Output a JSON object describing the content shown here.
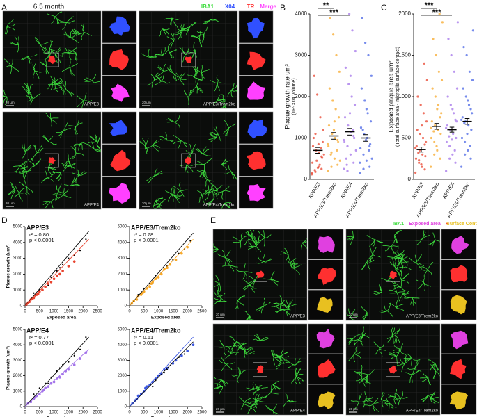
{
  "panel_letters": [
    "A",
    "B",
    "C",
    "D",
    "E"
  ],
  "panel_a": {
    "title": "6.5 month",
    "channels": [
      "IBA1",
      "X04",
      "TR",
      "Merge"
    ],
    "channel_colors": [
      "#3ddc3d",
      "#3050ff",
      "#ff3030",
      "#ff40ff"
    ],
    "images": [
      "APP/E3",
      "APP/E3/Trem2ko",
      "APP/E4",
      "APP/E4/Trem2ko"
    ],
    "scale": "20 µm"
  },
  "panel_e": {
    "channels": [
      "IBA1",
      "Exposed area",
      "TR",
      "Surface Contact"
    ],
    "channel_colors": [
      "#3ddc3d",
      "#e040e0",
      "#ff3030",
      "#e8c020"
    ],
    "images": [
      "APP/E3",
      "APP/E3/Trem2ko",
      "APP/E4",
      "APP/E4/Trem2ko"
    ],
    "scale": "20 µm"
  },
  "chart_data": [
    {
      "type": "strip",
      "ylabel": "Plaque growth rate um³",
      "ysublabel": "(TR-X04 volume)",
      "categories": [
        "APP/E3",
        "APP/E3/Trem2ko",
        "APP/E4",
        "APP/E4/Trem2ko"
      ],
      "groups": [
        {
          "color": "#e8432e",
          "values": [
            120,
            250,
            300,
            180,
            400,
            520,
            650,
            700,
            800,
            900,
            350,
            450,
            1000,
            1200,
            1500,
            2050,
            2500,
            600,
            750,
            280,
            220,
            150,
            550,
            850,
            1100
          ]
        },
        {
          "color": "#f7a829",
          "values": [
            200,
            350,
            500,
            650,
            800,
            900,
            1000,
            1100,
            1300,
            1500,
            1700,
            1900,
            2200,
            2600,
            3000,
            3500,
            3900,
            450,
            700,
            1200,
            600,
            850,
            950,
            1400,
            300
          ]
        },
        {
          "color": "#a373ea",
          "values": [
            250,
            400,
            600,
            800,
            900,
            1000,
            1150,
            1300,
            1500,
            1800,
            2000,
            2300,
            2700,
            3100,
            3600,
            4000,
            500,
            700,
            1200,
            1600,
            350,
            950,
            1050,
            2500,
            200
          ]
        },
        {
          "color": "#4a66e6",
          "values": [
            150,
            300,
            450,
            600,
            750,
            850,
            1000,
            1100,
            1250,
            1400,
            1600,
            1900,
            2200,
            2500,
            3000,
            3300,
            3900,
            500,
            700,
            950,
            1200,
            400,
            800,
            1700,
            250
          ]
        }
      ],
      "means": [
        700,
        1050,
        1150,
        1000
      ],
      "sem": [
        70,
        80,
        80,
        80
      ],
      "significance": [
        {
          "label": "**",
          "from": 0,
          "to": 1
        },
        {
          "label": "***",
          "from": 0,
          "to": 2
        }
      ],
      "ylim": [
        0,
        4000
      ],
      "yticks": [
        0,
        1000,
        2000,
        3000,
        4000
      ]
    },
    {
      "type": "strip",
      "ylabel": "Exposed plaque area um²",
      "ysublabel": "(Total surface area - microglia surface contact)",
      "categories": [
        "APP/E3",
        "APP/E3/Trem2ko",
        "APP/E4",
        "APP/E4/Trem2ko"
      ],
      "groups": [
        {
          "color": "#e8432e",
          "values": [
            80,
            120,
            150,
            200,
            250,
            280,
            300,
            350,
            400,
            450,
            500,
            550,
            600,
            700,
            800,
            900,
            1000,
            1200,
            1400,
            180,
            320,
            380,
            420,
            650,
            230
          ]
        },
        {
          "color": "#f7a829",
          "values": [
            150,
            250,
            350,
            450,
            500,
            550,
            600,
            650,
            700,
            800,
            900,
            1000,
            1100,
            1200,
            1300,
            1500,
            1700,
            1900,
            2000,
            400,
            580,
            620,
            750,
            850,
            300
          ]
        },
        {
          "color": "#a373ea",
          "values": [
            100,
            200,
            300,
            400,
            450,
            500,
            550,
            600,
            650,
            700,
            800,
            900,
            1000,
            1100,
            1300,
            1500,
            1700,
            1900,
            350,
            480,
            520,
            620,
            720,
            850,
            250
          ]
        },
        {
          "color": "#4a66e6",
          "values": [
            150,
            250,
            350,
            450,
            500,
            600,
            650,
            700,
            750,
            800,
            900,
            1000,
            1100,
            1200,
            1300,
            1500,
            1600,
            1800,
            400,
            550,
            680,
            720,
            850,
            950,
            300
          ]
        }
      ],
      "means": [
        360,
        640,
        600,
        700
      ],
      "sem": [
        30,
        35,
        30,
        35
      ],
      "significance": [
        {
          "label": "***",
          "from": 0,
          "to": 1
        },
        {
          "label": "***",
          "from": 0,
          "to": 2
        }
      ],
      "ylim": [
        0,
        2000
      ],
      "yticks": [
        0,
        500,
        1000,
        1500,
        2000
      ]
    },
    {
      "type": "scatter",
      "title": "APP/E3",
      "annotations": [
        "r² = 0.80",
        "p < 0.0001"
      ],
      "xlabel": "Exposed area",
      "ylabel": "Plaque growth (um³)",
      "points": {
        "color": "#e8432e",
        "x": [
          50,
          100,
          150,
          200,
          250,
          300,
          350,
          400,
          450,
          500,
          600,
          700,
          800,
          900,
          1000,
          1100,
          1200,
          1300,
          1500,
          1700
        ],
        "y": [
          100,
          200,
          250,
          400,
          450,
          500,
          650,
          700,
          750,
          900,
          1000,
          1200,
          1400,
          1500,
          1700,
          1900,
          2000,
          2200,
          2500,
          2800
        ]
      },
      "reference_points": {
        "color": "#000000",
        "x": [
          300,
          500,
          700,
          900,
          1100,
          1300,
          1500,
          1700,
          1900,
          2100,
          800,
          1200
        ],
        "y": [
          800,
          1000,
          1500,
          1800,
          2200,
          2600,
          3000,
          3200,
          3500,
          4200,
          1300,
          2400
        ]
      },
      "fit": {
        "color": "#e8432e",
        "x": [
          0,
          2200
        ],
        "y": [
          0,
          4200
        ]
      },
      "reference_fit": {
        "color": "#000000",
        "x": [
          0,
          2200
        ],
        "y": [
          0,
          4700
        ]
      },
      "xlim": [
        0,
        2500
      ],
      "ylim": [
        0,
        5000
      ],
      "xticks": [
        0,
        500,
        1000,
        1500,
        2000,
        2500
      ],
      "yticks": [
        0,
        1000,
        2000,
        3000,
        4000,
        5000
      ]
    },
    {
      "type": "scatter",
      "title": "APP/E3/Trem2ko",
      "annotations": [
        "r² = 0.78",
        "p < 0.0001"
      ],
      "xlabel": "Exposed area",
      "points": {
        "color": "#f7a829",
        "x": [
          80,
          150,
          250,
          300,
          400,
          450,
          500,
          600,
          700,
          750,
          800,
          900,
          1000,
          1100,
          1200,
          1300,
          1400,
          1600,
          1800,
          2000
        ],
        "y": [
          150,
          300,
          400,
          600,
          700,
          800,
          900,
          1100,
          1200,
          1400,
          1500,
          1700,
          1800,
          2000,
          2300,
          2400,
          2600,
          2900,
          3300,
          3700
        ]
      },
      "reference_points": {
        "color": "#000000",
        "x": [
          300,
          500,
          700,
          900,
          1100,
          1300,
          1500,
          1700,
          1900,
          2100,
          800,
          1200
        ],
        "y": [
          700,
          1100,
          1400,
          1900,
          2100,
          2500,
          2900,
          3300,
          3600,
          4100,
          1400,
          2300
        ]
      },
      "fit": {
        "color": "#f7a829",
        "x": [
          0,
          2200
        ],
        "y": [
          0,
          4200
        ]
      },
      "reference_fit": {
        "color": "#000000",
        "x": [
          0,
          2200
        ],
        "y": [
          0,
          4600
        ]
      },
      "xlim": [
        0,
        2500
      ],
      "ylim": [
        0,
        5000
      ],
      "xticks": [
        0,
        500,
        1000,
        1500,
        2000,
        2500
      ],
      "yticks": [
        0,
        1000,
        2000,
        3000,
        4000,
        5000
      ]
    },
    {
      "type": "scatter",
      "title": "APP/E4",
      "annotations": [
        "r² = 0.77",
        "p < 0.0001"
      ],
      "xlabel": "Exposed area",
      "ylabel": "Plaque growth (um³)",
      "points": {
        "color": "#a373ea",
        "x": [
          100,
          200,
          300,
          350,
          400,
          500,
          600,
          650,
          700,
          800,
          900,
          1000,
          1100,
          1200,
          1300,
          1400,
          1500,
          1700,
          1900,
          2100
        ],
        "y": [
          200,
          300,
          500,
          600,
          700,
          800,
          1000,
          1100,
          1200,
          1300,
          1500,
          1600,
          1800,
          1900,
          2100,
          2300,
          2400,
          2700,
          3100,
          3500
        ]
      },
      "reference_points": {
        "color": "#000000",
        "x": [
          300,
          500,
          700,
          900,
          1100,
          1300,
          1500,
          1700,
          1900,
          2100,
          800,
          1200
        ],
        "y": [
          800,
          1200,
          1500,
          1900,
          2300,
          2700,
          2900,
          3300,
          3700,
          4500,
          1500,
          2500
        ]
      },
      "fit": {
        "color": "#a373ea",
        "x": [
          0,
          2200
        ],
        "y": [
          0,
          3700
        ]
      },
      "reference_fit": {
        "color": "#000000",
        "x": [
          0,
          2200
        ],
        "y": [
          0,
          4500
        ]
      },
      "xlim": [
        0,
        2500
      ],
      "ylim": [
        0,
        5000
      ],
      "xticks": [
        0,
        500,
        1000,
        1500,
        2000,
        2500
      ],
      "yticks": [
        0,
        1000,
        2000,
        3000,
        4000,
        5000
      ]
    },
    {
      "type": "scatter",
      "title": "APP/E4/Trem2ko",
      "annotations": [
        "r² = 0.61",
        "p < 0.0001"
      ],
      "xlabel": "Exposed area",
      "points": {
        "color": "#3a56e0",
        "x": [
          100,
          200,
          250,
          300,
          400,
          500,
          550,
          600,
          700,
          800,
          900,
          1000,
          1100,
          1200,
          1300,
          1500,
          1600,
          1800,
          2000,
          2200
        ],
        "y": [
          200,
          400,
          500,
          700,
          800,
          1000,
          1200,
          1300,
          1400,
          1600,
          1800,
          2000,
          2100,
          2400,
          2500,
          2800,
          3000,
          3300,
          3600,
          4000
        ]
      },
      "reference_points": {
        "color": "#000000",
        "x": [
          300,
          500,
          700,
          900,
          1100,
          1300,
          1500,
          1700,
          1900,
          2100,
          800,
          1200
        ],
        "y": [
          700,
          1000,
          1400,
          1700,
          2100,
          2400,
          2800,
          3200,
          3400,
          4000,
          1300,
          2200
        ]
      },
      "fit": {
        "color": "#3a56e0",
        "x": [
          0,
          2200
        ],
        "y": [
          0,
          4500
        ]
      },
      "reference_fit": {
        "color": "#000000",
        "x": [
          0,
          2200
        ],
        "y": [
          0,
          4200
        ]
      },
      "xlim": [
        0,
        2500
      ],
      "ylim": [
        0,
        5000
      ],
      "xticks": [
        0,
        500,
        1000,
        1500,
        2000,
        2500
      ],
      "yticks": [
        0,
        1000,
        2000,
        3000,
        4000,
        5000
      ]
    }
  ]
}
